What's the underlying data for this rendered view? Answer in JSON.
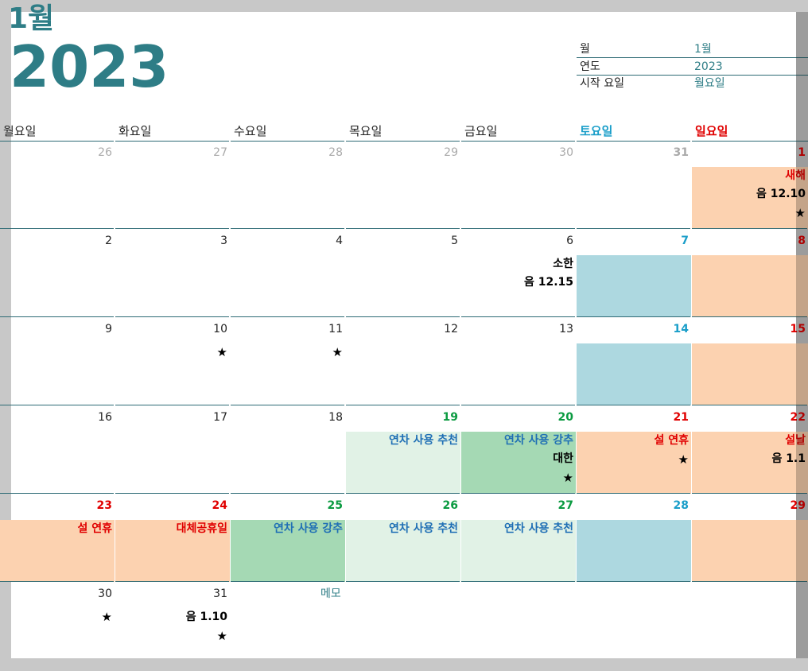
{
  "header": {
    "month": "1월",
    "year": "2023"
  },
  "info": [
    {
      "label": "월",
      "value": "1월"
    },
    {
      "label": "연도",
      "value": "2023"
    },
    {
      "label": "시작 요일",
      "value": "월요일"
    }
  ],
  "weekdays": [
    "월요일",
    "화요일",
    "수요일",
    "목요일",
    "금요일",
    "토요일",
    "일요일"
  ],
  "colors": {
    "teal": "#2e7d86",
    "saturday": "#1a9ec9",
    "sunday": "#e00000",
    "holiday_bg": "#fcd2b0",
    "saturday_bg": "#add8e0",
    "strong_green_bg": "#a5d9b4",
    "light_green_bg": "#e1f2e6",
    "green_text": "#0a9a40",
    "blue_text": "#1f6fb5",
    "gray": "#aaaaaa"
  },
  "memo_label": "메모",
  "weeks": [
    [
      {
        "day": "26",
        "muted": true
      },
      {
        "day": "27",
        "muted": true
      },
      {
        "day": "28",
        "muted": true
      },
      {
        "day": "29",
        "muted": true
      },
      {
        "day": "30",
        "muted": true
      },
      {
        "day": "31",
        "muted": true,
        "bold": true
      },
      {
        "day": "1",
        "color": "sunday",
        "bg": "holiday_bg",
        "events": [
          {
            "text": "새해",
            "color": "sunday"
          },
          {
            "text": "음 12.10"
          }
        ],
        "star": true
      }
    ],
    [
      {
        "day": "2"
      },
      {
        "day": "3"
      },
      {
        "day": "4"
      },
      {
        "day": "5"
      },
      {
        "day": "6",
        "events": [
          {
            "text": "소한"
          },
          {
            "text": "음 12.15"
          }
        ]
      },
      {
        "day": "7",
        "color": "saturday",
        "bg": "saturday_bg"
      },
      {
        "day": "8",
        "color": "sunday",
        "bg": "holiday_bg"
      }
    ],
    [
      {
        "day": "9"
      },
      {
        "day": "10",
        "star": true
      },
      {
        "day": "11",
        "star": true
      },
      {
        "day": "12"
      },
      {
        "day": "13"
      },
      {
        "day": "14",
        "color": "saturday",
        "bg": "saturday_bg"
      },
      {
        "day": "15",
        "color": "sunday",
        "bg": "holiday_bg"
      }
    ],
    [
      {
        "day": "16"
      },
      {
        "day": "17"
      },
      {
        "day": "18"
      },
      {
        "day": "19",
        "color": "green_text",
        "bg": "light_green_bg",
        "events": [
          {
            "text": "연차 사용 추천",
            "color": "blue_text"
          }
        ]
      },
      {
        "day": "20",
        "color": "green_text",
        "bg": "strong_green_bg",
        "events": [
          {
            "text": "연차 사용 강추",
            "color": "blue_text"
          },
          {
            "text": "대한"
          }
        ],
        "star": true
      },
      {
        "day": "21",
        "color": "sunday",
        "bg": "holiday_bg",
        "events": [
          {
            "text": "설 연휴",
            "color": "sunday"
          }
        ],
        "star": true
      },
      {
        "day": "22",
        "color": "sunday",
        "bg": "holiday_bg",
        "events": [
          {
            "text": "설날",
            "color": "sunday"
          },
          {
            "text": "음 1.1"
          }
        ]
      }
    ],
    [
      {
        "day": "23",
        "color": "sunday",
        "bg": "holiday_bg",
        "events": [
          {
            "text": "설 연휴",
            "color": "sunday"
          }
        ]
      },
      {
        "day": "24",
        "color": "sunday",
        "bg": "holiday_bg",
        "events": [
          {
            "text": "대체공휴일",
            "color": "sunday"
          }
        ]
      },
      {
        "day": "25",
        "color": "green_text",
        "bg": "strong_green_bg",
        "events": [
          {
            "text": "연차 사용 강추",
            "color": "blue_text"
          }
        ]
      },
      {
        "day": "26",
        "color": "green_text",
        "bg": "light_green_bg",
        "events": [
          {
            "text": "연차 사용 추천",
            "color": "blue_text"
          }
        ]
      },
      {
        "day": "27",
        "color": "green_text",
        "bg": "light_green_bg",
        "events": [
          {
            "text": "연차 사용 추천",
            "color": "blue_text"
          }
        ]
      },
      {
        "day": "28",
        "color": "saturday",
        "bg": "saturday_bg"
      },
      {
        "day": "29",
        "color": "sunday",
        "bg": "holiday_bg"
      }
    ],
    [
      {
        "day": "30",
        "star": true
      },
      {
        "day": "31",
        "events": [
          {
            "text": "음 1.10"
          }
        ],
        "star": true
      }
    ]
  ]
}
